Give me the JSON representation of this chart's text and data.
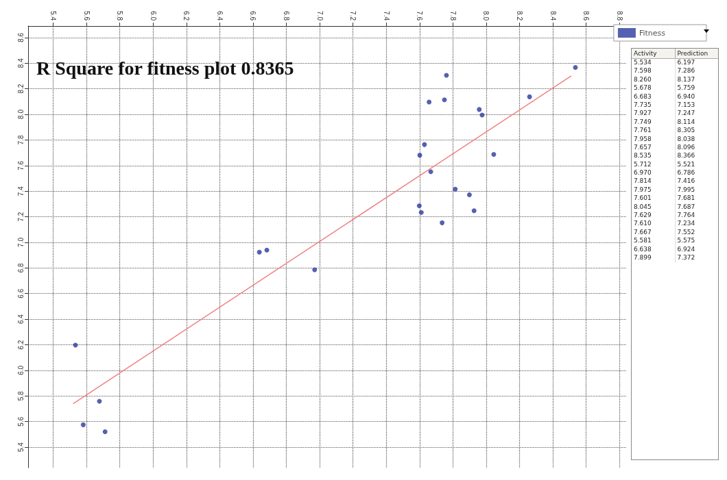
{
  "chart_data": {
    "type": "scatter",
    "title": "R Square for fitness plot 0.8365",
    "xlim": [
      5.25,
      8.84
    ],
    "ylim": [
      5.24,
      8.69
    ],
    "xticks": [
      5.4,
      5.6,
      5.8,
      {
        "value": 6,
        "label": "6.0"
      },
      6.2,
      6.4,
      6.6,
      6.8,
      {
        "value": 7,
        "label": "7.0"
      },
      7.2,
      7.4,
      7.6,
      7.8,
      {
        "value": 8,
        "label": "8.0"
      },
      8.2,
      8.4,
      8.6,
      8.8
    ],
    "yticks": [
      5.4,
      5.6,
      5.8,
      {
        "value": 6,
        "label": "6.0"
      },
      6.2,
      6.4,
      6.6,
      6.8,
      {
        "value": 7,
        "label": "7.0"
      },
      7.2,
      7.4,
      7.6,
      7.8,
      {
        "value": 8,
        "label": "8.0"
      },
      8.2,
      8.4,
      8.6
    ],
    "grid": true,
    "legend": "top right",
    "annotations": [
      "Activity",
      "Prediction",
      "5.534",
      "6.197",
      "7.598",
      "7.286",
      "8.260",
      "8.137",
      "5.678",
      "5.759",
      "6.683",
      "6.940",
      "7.735",
      "7.153",
      "7.927",
      "7.247",
      "7.749",
      "8.114",
      "7.761",
      "8.305",
      "7.958",
      "8.038",
      "7.657",
      "8.096",
      "8.535",
      "8.366",
      "5.712",
      "5.521",
      "6.970",
      "6.786",
      "7.814",
      "7.416",
      "7.975",
      "7.995",
      "7.601",
      "7.681",
      "8.045",
      "7.687",
      "7.629",
      "7.764",
      "7.610",
      "7.234",
      "7.667",
      "7.552",
      "5.581",
      "5.575",
      "6.638",
      "6.924",
      "7.899",
      "7.372"
    ],
    "series": [
      {
        "name": "Fitness",
        "color": "#2b3a9c",
        "marker": "circle",
        "x": [
          5.534,
          7.598,
          8.26,
          5.678,
          6.683,
          7.735,
          7.927,
          7.749,
          7.761,
          7.958,
          7.657,
          8.535,
          5.712,
          6.97,
          7.814,
          7.975,
          7.601,
          8.045,
          7.629,
          7.61,
          7.667,
          5.581,
          6.638,
          7.899
        ],
        "values": [
          6.197,
          7.286,
          8.137,
          5.759,
          6.94,
          7.153,
          7.247,
          8.114,
          8.305,
          8.038,
          8.096,
          8.366,
          5.521,
          6.786,
          7.416,
          7.995,
          7.681,
          7.687,
          7.764,
          7.234,
          7.552,
          5.575,
          6.924,
          7.372
        ]
      },
      {
        "type": "line",
        "color": "#f08080",
        "marker": "none",
        "x": [
          5.52,
          8.51
        ],
        "values": [
          5.74,
          8.3
        ]
      }
    ]
  }
}
